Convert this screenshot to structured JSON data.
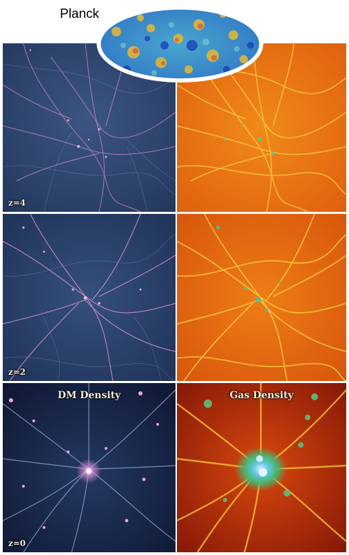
{
  "header": {
    "label": "Planck"
  },
  "columns": {
    "left": "DM Density",
    "right": "Gas Density"
  },
  "rows": [
    {
      "redshift": "z=4"
    },
    {
      "redshift": "z=2"
    },
    {
      "redshift": "z=0"
    }
  ],
  "colors": {
    "dm_background": "#2a3f68",
    "dm_filament": "#f3a0d8",
    "gas_background": "#e56010",
    "gas_filament": "#f3e24a",
    "gas_dense": "#4fc07a",
    "separator": "#ffffff"
  }
}
